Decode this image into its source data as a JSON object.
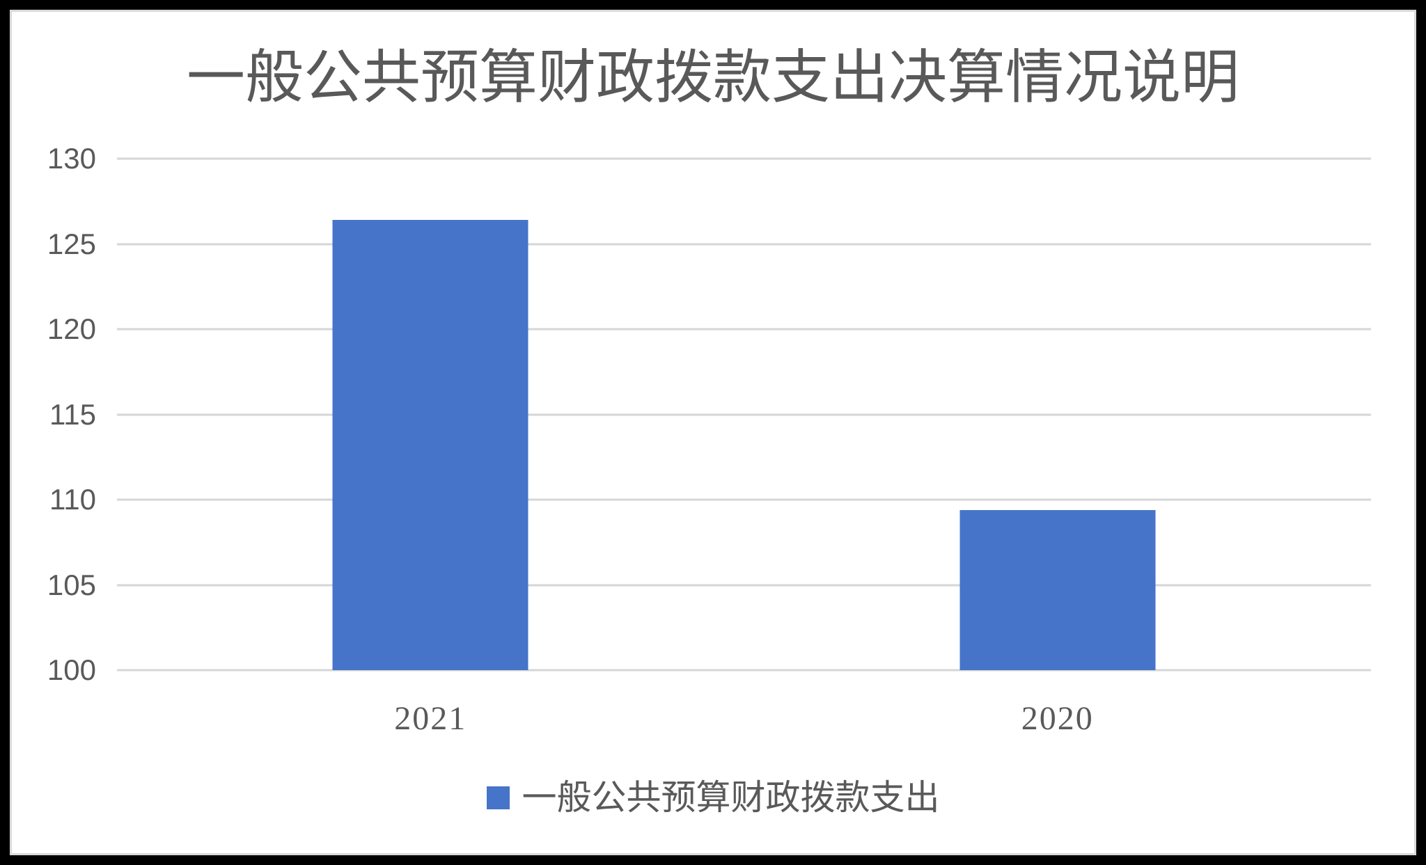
{
  "chart_data": {
    "type": "bar",
    "title": "一般公共预算财政拨款支出决算情况说明",
    "categories": [
      "2021",
      "2020"
    ],
    "series": [
      {
        "name": "一般公共预算财政拨款支出",
        "values": [
          126.4,
          109.4
        ]
      }
    ],
    "xlabel": "",
    "ylabel": "",
    "ylim": [
      100,
      130
    ],
    "yticks": [
      130,
      125,
      120,
      115,
      110,
      105,
      100
    ],
    "grid": true,
    "legend_position": "bottom"
  },
  "legend": {
    "label": "一般公共预算财政拨款支出",
    "swatch": "blue-square-icon"
  },
  "colors": {
    "bar": "#4674C8",
    "gridline": "#D6D6D6",
    "axis_text": "#595959",
    "title_text": "#595959",
    "chart_border": "#D9D9D9",
    "chart_background": "#FFFFFF",
    "frame_background": "#000000"
  }
}
